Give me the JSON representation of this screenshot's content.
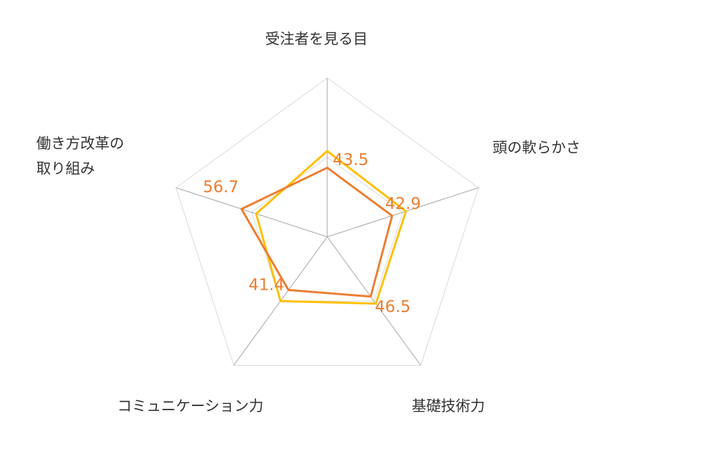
{
  "chart_data": {
    "type": "radar",
    "axes": [
      {
        "label": [
          "受注者を見る目"
        ]
      },
      {
        "label": [
          "頭の軟らかさ"
        ]
      },
      {
        "label": [
          "基礎技術力"
        ]
      },
      {
        "label": [
          "コミュニケーション力"
        ]
      },
      {
        "label": [
          "働き方改革の",
          "取り組み"
        ]
      }
    ],
    "range": [
      0,
      100
    ],
    "grid_levels": [
      50,
      100
    ],
    "series": [
      {
        "values": [
          43.5,
          42.9,
          46.5,
          41.4,
          56.7
        ],
        "color": "#ED7D31",
        "show_labels": true
      },
      {
        "values": [
          54,
          52,
          52,
          50,
          47
        ],
        "color": "#FFC000",
        "show_labels": false
      }
    ],
    "colors": {
      "grid": "#d9d9d9",
      "spoke": "#a6a6a6",
      "label_text": "#333333",
      "value_text": "#ED7D31"
    }
  }
}
